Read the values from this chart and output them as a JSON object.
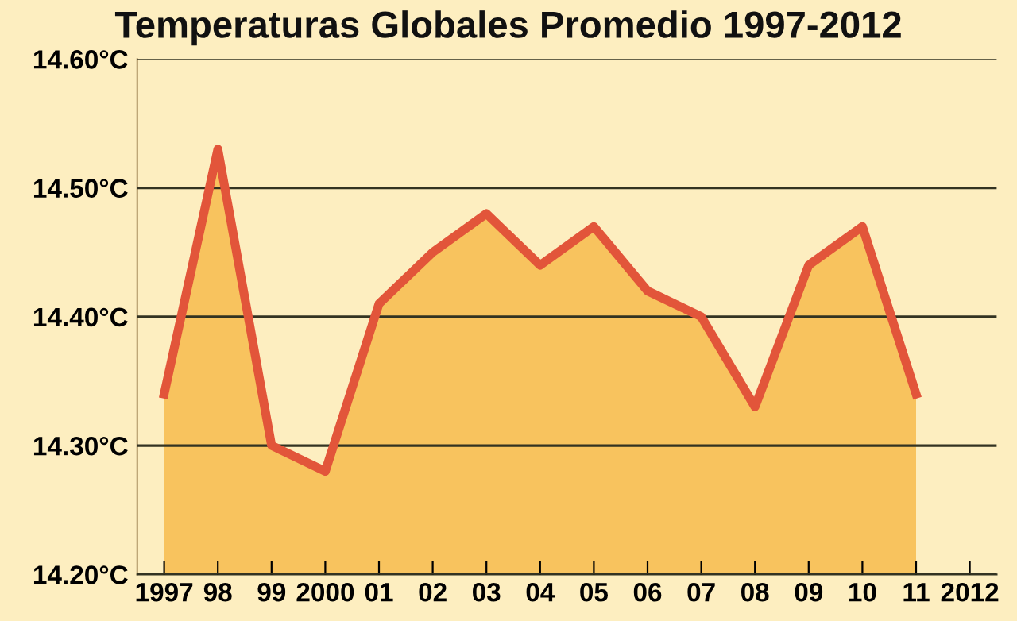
{
  "chart_data": {
    "type": "area",
    "title": "Temperaturas Globales Promedio 1997-2012",
    "categories": [
      "1997",
      "98",
      "99",
      "2000",
      "01",
      "02",
      "03",
      "04",
      "05",
      "06",
      "07",
      "08",
      "09",
      "10",
      "11",
      "2012"
    ],
    "series": [
      {
        "color": "#e2553a",
        "values": [
          14.34,
          14.53,
          14.3,
          14.28,
          14.41,
          14.45,
          14.48,
          14.44,
          14.47,
          14.42,
          14.4,
          14.33,
          14.44,
          14.47,
          14.34,
          null
        ]
      }
    ],
    "ylim": [
      14.2,
      14.6
    ],
    "yticks": [
      {
        "value": 14.2,
        "label": "14.20°C"
      },
      {
        "value": 14.3,
        "label": "14.30°C"
      },
      {
        "value": 14.4,
        "label": "14.40°C"
      },
      {
        "value": 14.5,
        "label": "14.50°C"
      },
      {
        "value": 14.6,
        "label": "14.60°C"
      }
    ],
    "grid": "y",
    "marker": "none",
    "line_style": "solid",
    "legend": false
  }
}
